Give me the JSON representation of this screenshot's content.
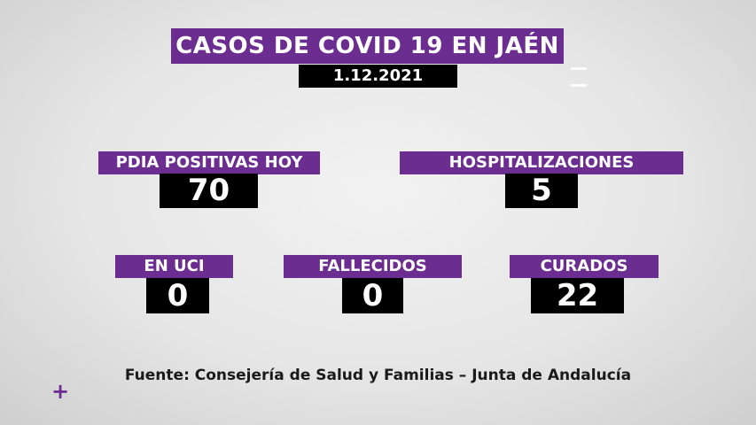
{
  "header": {
    "title": "CASOS DE COVID 19 EN JAÉN",
    "date": "1.12.2021"
  },
  "stats": [
    {
      "label": "PDIA POSITIVAS HOY",
      "value": "70"
    },
    {
      "label": "HOSPITALIZACIONES",
      "value": "5"
    },
    {
      "label": "EN UCI",
      "value": "0"
    },
    {
      "label": "FALLECIDOS",
      "value": "0"
    },
    {
      "label": "CURADOS",
      "value": "22"
    }
  ],
  "footer": {
    "source": "Fuente: Consejería de Salud y Familias – Junta de Andalucía",
    "plus_glyph": "+"
  },
  "colors": {
    "accent_purple": "#6b2d8f",
    "value_box": "#000000",
    "background": "#e6e6e6"
  }
}
